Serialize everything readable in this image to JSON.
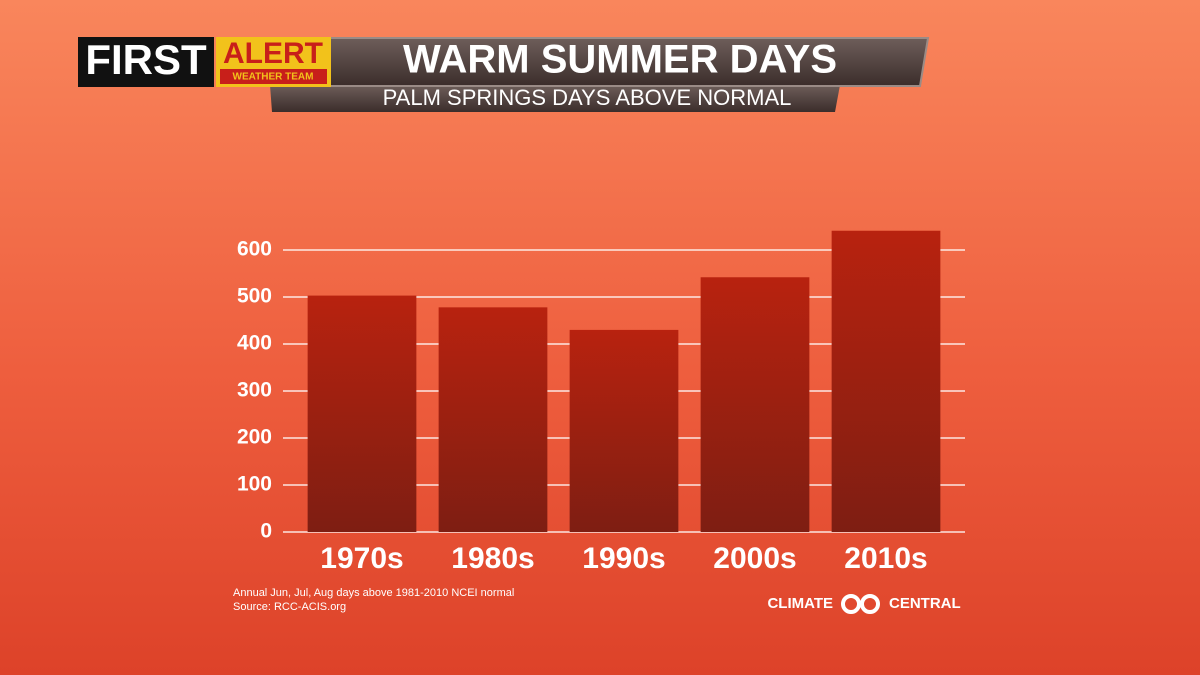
{
  "header": {
    "brand": "FIRST",
    "badge": "ALERT",
    "badge_sub": "WEATHER TEAM"
  },
  "chart_data": {
    "type": "bar",
    "title": "WARM SUMMER DAYS",
    "subtitle": "PALM SPRINGS DAYS ABOVE NORMAL",
    "categories": [
      "1970s",
      "1980s",
      "1990s",
      "2000s",
      "2010s"
    ],
    "values": [
      503,
      478,
      430,
      542,
      641
    ],
    "color": "#a52010",
    "ylim": [
      0,
      650
    ],
    "yticks": [
      0,
      100,
      200,
      300,
      400,
      500,
      600
    ],
    "grid": true,
    "notes": [
      "Annual Jun, Jul, Aug days above 1981-2010 NCEI normal",
      "Source: RCC-ACIS.org"
    ]
  },
  "footer": {
    "logo_left": "CLIMATE",
    "logo_right": "CENTRAL"
  }
}
